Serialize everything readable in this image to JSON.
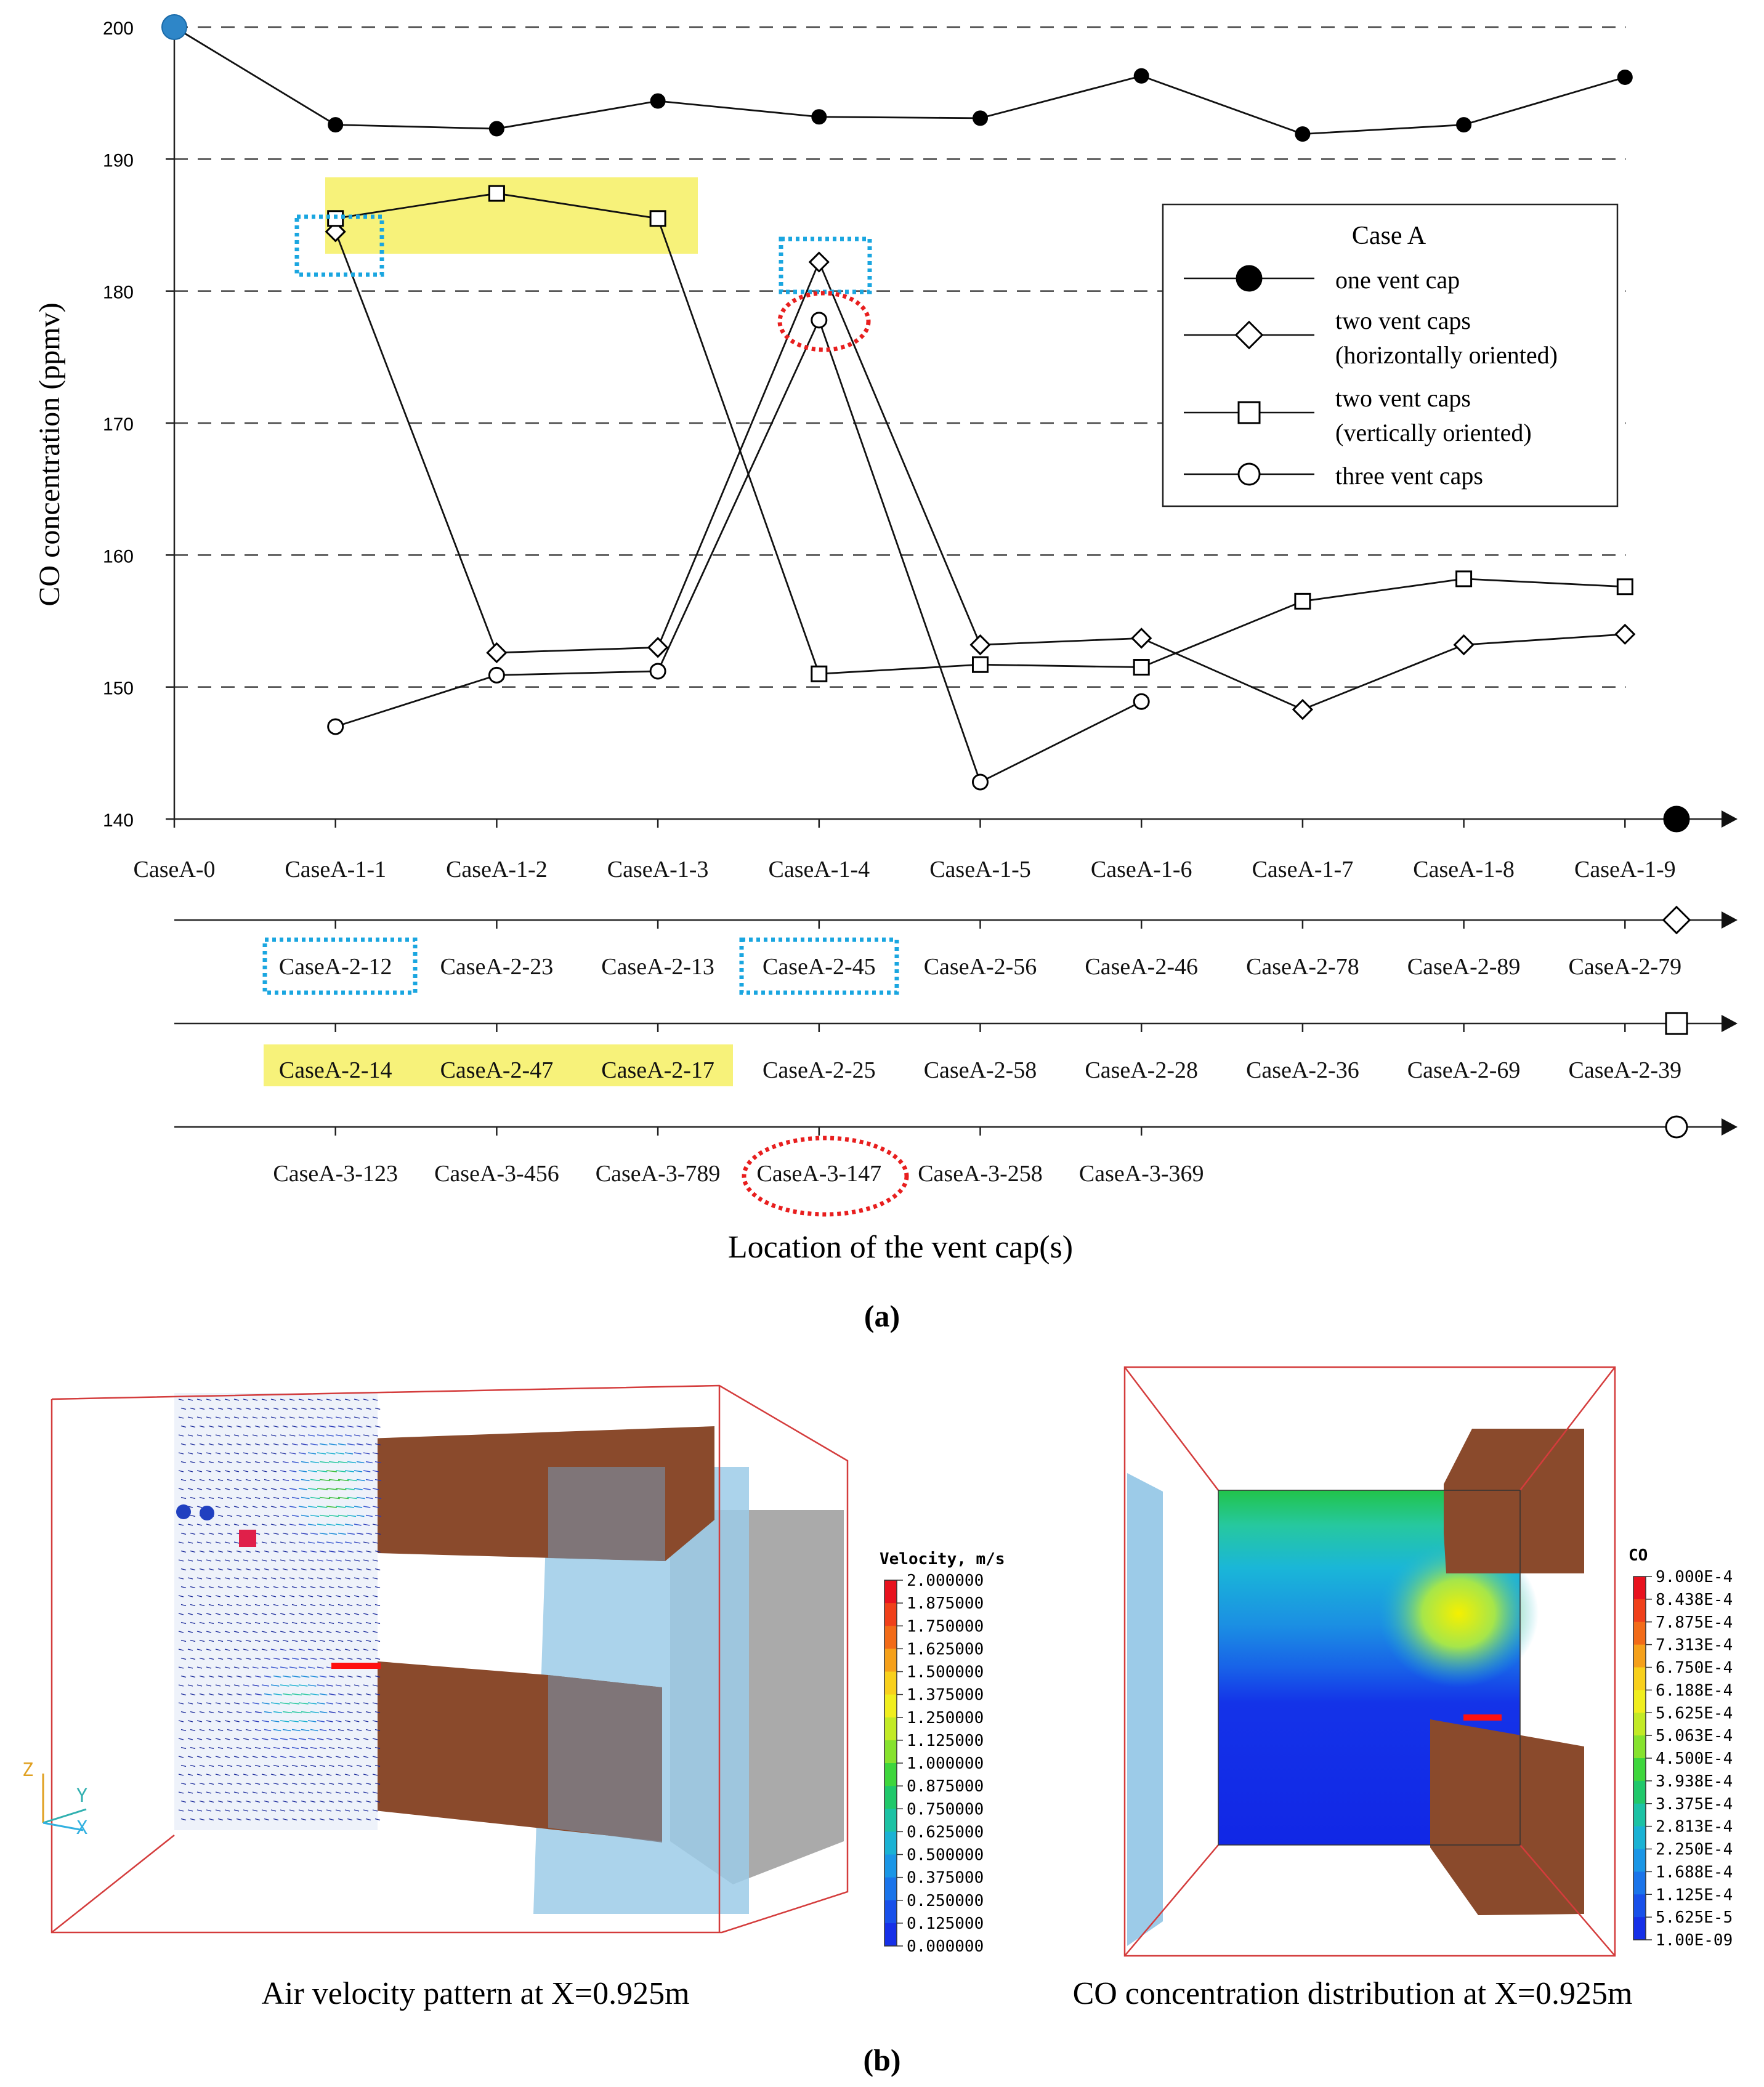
{
  "chart_data": [
    {
      "type": "line",
      "ylabel": "CO concentration (ppmv)",
      "xlabel": "Location of the vent cap(s)",
      "ylim": [
        140,
        200
      ],
      "yticks": [
        140,
        150,
        160,
        170,
        180,
        190,
        200
      ],
      "grid": "horizontal dashed",
      "panel_label": "(a)",
      "legend": {
        "title": "Case A",
        "placement": "top-right",
        "entries": [
          {
            "marker": "filled-circle",
            "lines": [
              "one vent cap"
            ]
          },
          {
            "marker": "diamond",
            "lines": [
              "two vent caps",
              "(horizontally oriented)"
            ]
          },
          {
            "marker": "square",
            "lines": [
              "two vent caps",
              "(vertically oriented)"
            ]
          },
          {
            "marker": "circle",
            "lines": [
              "three vent caps"
            ]
          }
        ]
      },
      "axes": [
        {
          "marker": "filled-circle",
          "labels": [
            "CaseA-0",
            "CaseA-1-1",
            "CaseA-1-2",
            "CaseA-1-3",
            "CaseA-1-4",
            "CaseA-1-5",
            "CaseA-1-6",
            "CaseA-1-7",
            "CaseA-1-8",
            "CaseA-1-9"
          ]
        },
        {
          "marker": "diamond",
          "labels": [
            "CaseA-2-12",
            "CaseA-2-23",
            "CaseA-2-13",
            "CaseA-2-45",
            "CaseA-2-56",
            "CaseA-2-46",
            "CaseA-2-78",
            "CaseA-2-89",
            "CaseA-2-79"
          ]
        },
        {
          "marker": "square",
          "labels": [
            "CaseA-2-14",
            "CaseA-2-47",
            "CaseA-2-17",
            "CaseA-2-25",
            "CaseA-2-58",
            "CaseA-2-28",
            "CaseA-2-36",
            "CaseA-2-69",
            "CaseA-2-39"
          ]
        },
        {
          "marker": "circle",
          "labels": [
            "CaseA-3-123",
            "CaseA-3-456",
            "CaseA-3-789",
            "CaseA-3-147",
            "CaseA-3-258",
            "CaseA-3-369"
          ]
        }
      ],
      "series": [
        {
          "marker": "filled-circle",
          "x": [
            1,
            2,
            3,
            4,
            5,
            6,
            7,
            8,
            9
          ],
          "values": [
            192.6,
            192.3,
            194.4,
            193.2,
            193.1,
            196.3,
            191.9,
            192.6,
            196.2
          ]
        },
        {
          "marker": "diamond",
          "x": [
            1,
            2,
            3,
            4,
            5,
            6,
            7,
            8,
            9
          ],
          "values": [
            184.5,
            152.6,
            153.0,
            182.2,
            153.2,
            153.7,
            148.3,
            153.2,
            154.0
          ]
        },
        {
          "marker": "square",
          "x": [
            1,
            2,
            3,
            4,
            5,
            6,
            7,
            8,
            9
          ],
          "values": [
            185.5,
            187.4,
            185.5,
            151.0,
            151.7,
            151.5,
            156.5,
            158.2,
            157.6
          ]
        },
        {
          "marker": "circle",
          "x": [
            1,
            2,
            3,
            4,
            5,
            6
          ],
          "values": [
            147.0,
            150.9,
            151.2,
            177.8,
            142.8,
            148.9
          ]
        }
      ],
      "start_point": {
        "x": 0,
        "value": 200,
        "color": "#2e86c8"
      },
      "highlight_colors": {
        "yellow": "#f7f27a",
        "cyan": "#1aa6e0",
        "red": "#e81e1e"
      }
    },
    {
      "type": "image",
      "panel_label": "(b)",
      "panels": [
        {
          "caption": "Air velocity pattern at X=0.925m",
          "colorbar": {
            "title": "Velocity, m/s",
            "labels": [
              "2.000000",
              "1.875000",
              "1.750000",
              "1.625000",
              "1.500000",
              "1.375000",
              "1.250000",
              "1.125000",
              "1.000000",
              "0.875000",
              "0.750000",
              "0.625000",
              "0.500000",
              "0.375000",
              "0.250000",
              "0.125000",
              "0.000000"
            ]
          },
          "axis_letters": [
            "Z",
            "Y",
            "X"
          ]
        },
        {
          "caption": "CO concentration distribution at X=0.925m",
          "colorbar": {
            "title": "CO",
            "labels": [
              "9.000E-4",
              "8.438E-4",
              "7.875E-4",
              "7.313E-4",
              "6.750E-4",
              "6.188E-4",
              "5.625E-4",
              "5.063E-4",
              "4.500E-4",
              "3.938E-4",
              "3.375E-4",
              "2.813E-4",
              "2.250E-4",
              "1.688E-4",
              "1.125E-4",
              "5.625E-5",
              "1.00E-09"
            ]
          }
        }
      ],
      "colors": {
        "box": "#d43c3c",
        "block": "#8a4a2c",
        "glass": "#9ccbe8",
        "gray": "#a9a9a9"
      }
    }
  ]
}
